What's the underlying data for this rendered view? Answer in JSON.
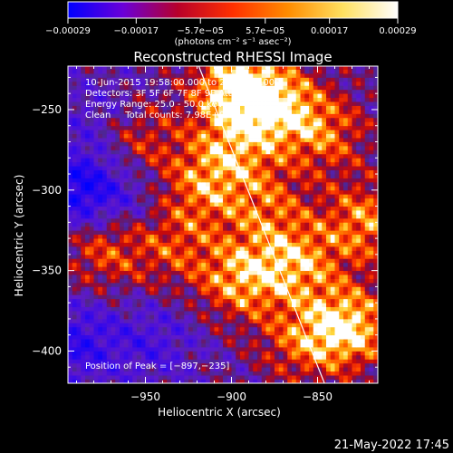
{
  "chart_data": {
    "type": "heatmap",
    "title": "Reconstructed RHESSI Image",
    "xlabel": "Heliocentric X (arcsec)",
    "ylabel": "Heliocentric Y (arcsec)",
    "xlim": [
      -995,
      -815
    ],
    "ylim": [
      -420,
      -223
    ],
    "xticks": [
      -950,
      -900,
      -850
    ],
    "xtick_labels": [
      "−950",
      "−900",
      "−850"
    ],
    "yticks": [
      -400,
      -350,
      -300,
      -250
    ],
    "ytick_labels": [
      "−400",
      "−350",
      "−300",
      "−250"
    ],
    "colorbar": {
      "ticks": [
        -0.00029,
        -0.00017,
        -5.7e-05,
        5.7e-05,
        0.00017,
        0.00029
      ],
      "tick_labels": [
        "−0.00029",
        "−0.00017",
        "−5.7e−05",
        "5.7e−05",
        "0.00017",
        "0.00029"
      ],
      "unit": "(photons cm⁻² s⁻¹ asec⁻²)",
      "colors": [
        "#0000ff",
        "#6a00d8",
        "#b8002a",
        "#ff3000",
        "#ff8c00",
        "#ffe060",
        "#ffffff"
      ]
    },
    "annotations": [
      "10-Jun-2015 19:58:00.000 to 20:03:36.000",
      "Detectors: 3F 5F 6F 7F 8F 9F Att 0",
      "Energy Range: 25.0 - 50.0 keV",
      "Clean     Total counts: 7.98E+03",
      "Position of Peak = [−897,−235]"
    ],
    "limb_line": {
      "x": [
        -919,
        -846
      ],
      "y": [
        -223,
        -420
      ]
    },
    "peak": {
      "x": -897,
      "y": -235
    },
    "hotspots": [
      {
        "x": -897,
        "y": -235,
        "v": 1.0
      },
      {
        "x": -872,
        "y": -248,
        "v": 0.75
      },
      {
        "x": -832,
        "y": -385,
        "v": 0.95
      },
      {
        "x": -822,
        "y": -320,
        "v": 0.7
      },
      {
        "x": -862,
        "y": -345,
        "v": 0.7
      },
      {
        "x": -895,
        "y": -355,
        "v": 0.75
      },
      {
        "x": -920,
        "y": -300,
        "v": 0.55
      },
      {
        "x": -955,
        "y": -268,
        "v": 0.5
      },
      {
        "x": -975,
        "y": -336,
        "v": 0.55
      },
      {
        "x": -900,
        "y": -275,
        "v": 0.6
      },
      {
        "x": -845,
        "y": -265,
        "v": 0.55
      },
      {
        "x": -880,
        "y": -310,
        "v": 0.5
      },
      {
        "x": -935,
        "y": -335,
        "v": 0.45
      },
      {
        "x": -860,
        "y": -395,
        "v": 0.5
      }
    ],
    "lows": [
      {
        "x": -988,
        "y": -300,
        "v": -0.8
      },
      {
        "x": -990,
        "y": -395,
        "v": -0.55
      },
      {
        "x": -945,
        "y": -395,
        "v": -0.35
      },
      {
        "x": -975,
        "y": -255,
        "v": -0.3
      },
      {
        "x": -955,
        "y": -305,
        "v": -0.25
      }
    ]
  },
  "footer": {
    "timestamp": "21-May-2022 17:45"
  }
}
